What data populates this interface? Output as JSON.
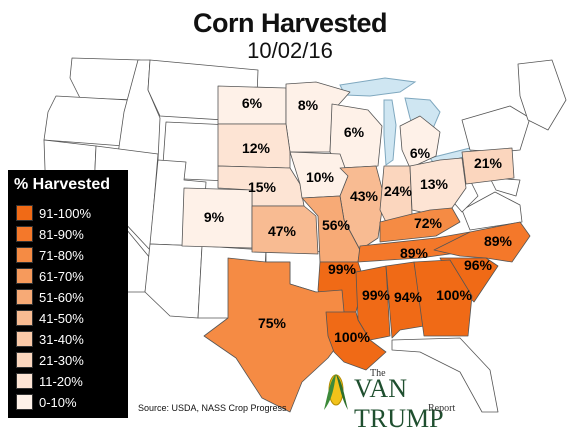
{
  "header": {
    "title": "Corn Harvested",
    "date": "10/02/16"
  },
  "legend": {
    "title": "% Harvested",
    "items": [
      {
        "label": "91-100%",
        "color": "#f06a16"
      },
      {
        "label": "81-90%",
        "color": "#f4782a"
      },
      {
        "label": "71-80%",
        "color": "#f58b44"
      },
      {
        "label": "61-70%",
        "color": "#f69a5c"
      },
      {
        "label": "51-60%",
        "color": "#f7aa76"
      },
      {
        "label": "41-50%",
        "color": "#f8bb92"
      },
      {
        "label": "31-40%",
        "color": "#fac9a8"
      },
      {
        "label": "21-30%",
        "color": "#fbd6be"
      },
      {
        "label": "11-20%",
        "color": "#fde4d4"
      },
      {
        "label": "0-10%",
        "color": "#fef1e8"
      }
    ]
  },
  "states": [
    {
      "name": "ND",
      "value": "6%"
    },
    {
      "name": "MN",
      "value": "8%"
    },
    {
      "name": "SD",
      "value": "12%"
    },
    {
      "name": "WI",
      "value": "6%"
    },
    {
      "name": "MI",
      "value": "6%"
    },
    {
      "name": "PA",
      "value": "21%"
    },
    {
      "name": "NE",
      "value": "15%"
    },
    {
      "name": "IA",
      "value": "10%"
    },
    {
      "name": "IL",
      "value": "43%"
    },
    {
      "name": "IN",
      "value": "24%"
    },
    {
      "name": "OH",
      "value": "13%"
    },
    {
      "name": "CO",
      "value": "9%"
    },
    {
      "name": "KS",
      "value": "47%"
    },
    {
      "name": "MO",
      "value": "56%"
    },
    {
      "name": "KY",
      "value": "72%"
    },
    {
      "name": "TN",
      "value": "89%"
    },
    {
      "name": "NC",
      "value": "89%"
    },
    {
      "name": "AR",
      "value": "99%"
    },
    {
      "name": "SC",
      "value": "96%"
    },
    {
      "name": "MS",
      "value": "99%"
    },
    {
      "name": "AL",
      "value": "94%"
    },
    {
      "name": "GA",
      "value": "100%"
    },
    {
      "name": "TX",
      "value": "75%"
    },
    {
      "name": "LA",
      "value": "100%"
    }
  ],
  "colors": {
    "water": "#cfe6f2",
    "land": "#ffffff",
    "border": "#555555"
  },
  "source": "Source: USDA, NASS Crop Progress",
  "logo": {
    "the": "The",
    "name": "VAN TRUMP",
    "report": "Report"
  }
}
